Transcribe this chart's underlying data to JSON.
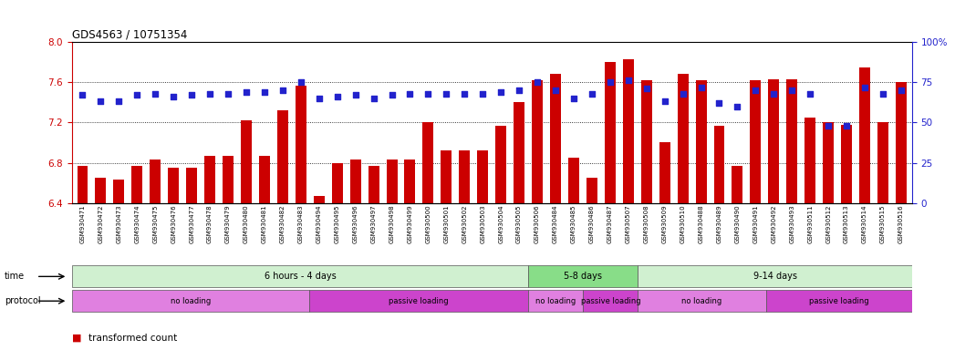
{
  "title": "GDS4563 / 10751354",
  "categories": [
    "GSM930471",
    "GSM930472",
    "GSM930473",
    "GSM930474",
    "GSM930475",
    "GSM930476",
    "GSM930477",
    "GSM930478",
    "GSM930479",
    "GSM930480",
    "GSM930481",
    "GSM930482",
    "GSM930483",
    "GSM930494",
    "GSM930495",
    "GSM930496",
    "GSM930497",
    "GSM930498",
    "GSM930499",
    "GSM930500",
    "GSM930501",
    "GSM930502",
    "GSM930503",
    "GSM930504",
    "GSM930505",
    "GSM930506",
    "GSM930484",
    "GSM930485",
    "GSM930486",
    "GSM930487",
    "GSM930507",
    "GSM930508",
    "GSM930509",
    "GSM930510",
    "GSM930488",
    "GSM930489",
    "GSM930490",
    "GSM930491",
    "GSM930492",
    "GSM930493",
    "GSM930511",
    "GSM930512",
    "GSM930513",
    "GSM930514",
    "GSM930515",
    "GSM930516"
  ],
  "bar_values": [
    6.77,
    6.65,
    6.63,
    6.77,
    6.83,
    6.75,
    6.75,
    6.87,
    6.87,
    7.22,
    6.87,
    7.32,
    7.57,
    6.47,
    6.8,
    6.83,
    6.77,
    6.83,
    6.83,
    7.2,
    6.92,
    6.92,
    6.92,
    7.17,
    7.4,
    7.62,
    7.68,
    6.85,
    6.65,
    7.8,
    7.83,
    7.62,
    7.0,
    7.68,
    7.62,
    7.17,
    6.77,
    7.62,
    7.63,
    7.63,
    7.25,
    7.2,
    7.18,
    7.75,
    7.2,
    7.6
  ],
  "percentile_values": [
    67,
    63,
    63,
    67,
    68,
    66,
    67,
    68,
    68,
    69,
    69,
    70,
    75,
    65,
    66,
    67,
    65,
    67,
    68,
    68,
    68,
    68,
    68,
    69,
    70,
    75,
    70,
    65,
    68,
    75,
    76,
    71,
    63,
    68,
    72,
    62,
    60,
    70,
    68,
    70,
    68,
    48,
    48,
    72,
    68,
    70
  ],
  "ylim_left": [
    6.4,
    8.0
  ],
  "ylim_right": [
    0,
    100
  ],
  "yticks_left": [
    6.4,
    6.8,
    7.2,
    7.6,
    8.0
  ],
  "yticks_right": [
    0,
    25,
    50,
    75,
    100
  ],
  "bar_color": "#cc0000",
  "dot_color": "#2222cc",
  "bg_color": "#ffffff",
  "time_groups": [
    {
      "label": "6 hours - 4 days",
      "start": 0,
      "end": 25,
      "color": "#d0f0d0"
    },
    {
      "label": "5-8 days",
      "start": 25,
      "end": 31,
      "color": "#88dd88"
    },
    {
      "label": "9-14 days",
      "start": 31,
      "end": 46,
      "color": "#d0f0d0"
    }
  ],
  "protocol_groups": [
    {
      "label": "no loading",
      "start": 0,
      "end": 13,
      "color": "#e080e0"
    },
    {
      "label": "passive loading",
      "start": 13,
      "end": 25,
      "color": "#cc44cc"
    },
    {
      "label": "no loading",
      "start": 25,
      "end": 28,
      "color": "#e080e0"
    },
    {
      "label": "passive loading",
      "start": 28,
      "end": 31,
      "color": "#cc44cc"
    },
    {
      "label": "no loading",
      "start": 31,
      "end": 38,
      "color": "#e080e0"
    },
    {
      "label": "passive loading",
      "start": 38,
      "end": 46,
      "color": "#cc44cc"
    }
  ]
}
